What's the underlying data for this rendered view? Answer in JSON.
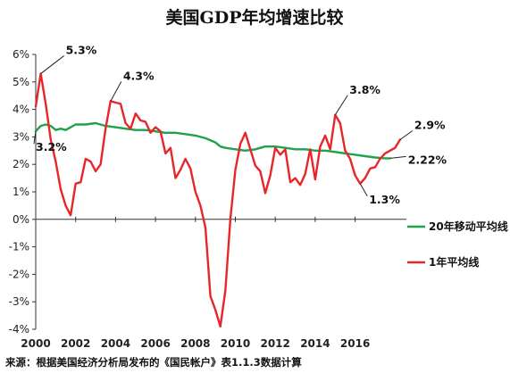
{
  "chart_data": {
    "type": "line",
    "title": "美国GDP年均增速比较",
    "source": "来源：根据美国经济分析局发布的《国民帐户》表1.1.3数据计算",
    "ylim": [
      -4,
      6
    ],
    "xlim": [
      2000,
      2018
    ],
    "y_ticks": [
      "6%",
      "5%",
      "4%",
      "3%",
      "2%",
      "1%",
      "0%",
      "-1%",
      "-2%",
      "-3%",
      "-4%"
    ],
    "x_ticks": [
      "2000",
      "2002",
      "2004",
      "2006",
      "2008",
      "2010",
      "2012",
      "2014",
      "2016"
    ],
    "series": [
      {
        "name": "20年移动平均线",
        "color": "#1fa34a",
        "points": [
          [
            2000.0,
            3.2
          ],
          [
            2000.25,
            3.4
          ],
          [
            2000.5,
            3.45
          ],
          [
            2000.75,
            3.4
          ],
          [
            2001.0,
            3.25
          ],
          [
            2001.25,
            3.3
          ],
          [
            2001.5,
            3.25
          ],
          [
            2001.75,
            3.35
          ],
          [
            2002.0,
            3.45
          ],
          [
            2002.5,
            3.45
          ],
          [
            2003.0,
            3.5
          ],
          [
            2003.5,
            3.4
          ],
          [
            2004.0,
            3.35
          ],
          [
            2004.5,
            3.3
          ],
          [
            2005.0,
            3.25
          ],
          [
            2005.5,
            3.25
          ],
          [
            2006.0,
            3.2
          ],
          [
            2006.5,
            3.15
          ],
          [
            2007.0,
            3.15
          ],
          [
            2007.5,
            3.1
          ],
          [
            2008.0,
            3.05
          ],
          [
            2008.5,
            2.95
          ],
          [
            2009.0,
            2.8
          ],
          [
            2009.25,
            2.65
          ],
          [
            2009.5,
            2.6
          ],
          [
            2010.0,
            2.55
          ],
          [
            2010.5,
            2.5
          ],
          [
            2011.0,
            2.55
          ],
          [
            2011.5,
            2.65
          ],
          [
            2012.0,
            2.65
          ],
          [
            2012.5,
            2.6
          ],
          [
            2013.0,
            2.55
          ],
          [
            2013.5,
            2.55
          ],
          [
            2014.0,
            2.5
          ],
          [
            2014.5,
            2.5
          ],
          [
            2015.0,
            2.45
          ],
          [
            2015.5,
            2.4
          ],
          [
            2016.0,
            2.35
          ],
          [
            2016.5,
            2.3
          ],
          [
            2017.0,
            2.25
          ],
          [
            2017.5,
            2.22
          ],
          [
            2017.75,
            2.22
          ]
        ]
      },
      {
        "name": "1年平均线",
        "color": "#e8262a",
        "points": [
          [
            2000.0,
            4.1
          ],
          [
            2000.25,
            5.3
          ],
          [
            2000.5,
            4.2
          ],
          [
            2000.75,
            2.9
          ],
          [
            2001.0,
            2.1
          ],
          [
            2001.25,
            1.1
          ],
          [
            2001.5,
            0.5
          ],
          [
            2001.75,
            0.15
          ],
          [
            2002.0,
            1.3
          ],
          [
            2002.25,
            1.35
          ],
          [
            2002.5,
            2.2
          ],
          [
            2002.75,
            2.1
          ],
          [
            2003.0,
            1.75
          ],
          [
            2003.25,
            2.0
          ],
          [
            2003.5,
            3.3
          ],
          [
            2003.75,
            4.3
          ],
          [
            2004.0,
            4.25
          ],
          [
            2004.25,
            4.2
          ],
          [
            2004.5,
            3.5
          ],
          [
            2004.75,
            3.3
          ],
          [
            2005.0,
            3.85
          ],
          [
            2005.25,
            3.6
          ],
          [
            2005.5,
            3.55
          ],
          [
            2005.75,
            3.15
          ],
          [
            2006.0,
            3.35
          ],
          [
            2006.25,
            3.2
          ],
          [
            2006.5,
            2.4
          ],
          [
            2006.75,
            2.6
          ],
          [
            2007.0,
            1.5
          ],
          [
            2007.25,
            1.8
          ],
          [
            2007.5,
            2.2
          ],
          [
            2007.75,
            1.85
          ],
          [
            2008.0,
            1.0
          ],
          [
            2008.25,
            0.5
          ],
          [
            2008.5,
            -0.3
          ],
          [
            2008.75,
            -2.8
          ],
          [
            2009.0,
            -3.3
          ],
          [
            2009.25,
            -3.9
          ],
          [
            2009.5,
            -2.6
          ],
          [
            2009.75,
            0.0
          ],
          [
            2010.0,
            1.8
          ],
          [
            2010.25,
            2.75
          ],
          [
            2010.5,
            3.15
          ],
          [
            2010.75,
            2.55
          ],
          [
            2011.0,
            1.95
          ],
          [
            2011.25,
            1.75
          ],
          [
            2011.5,
            0.95
          ],
          [
            2011.75,
            1.6
          ],
          [
            2012.0,
            2.6
          ],
          [
            2012.25,
            2.35
          ],
          [
            2012.5,
            2.55
          ],
          [
            2012.75,
            1.35
          ],
          [
            2013.0,
            1.5
          ],
          [
            2013.25,
            1.25
          ],
          [
            2013.5,
            1.65
          ],
          [
            2013.75,
            2.55
          ],
          [
            2014.0,
            1.45
          ],
          [
            2014.25,
            2.65
          ],
          [
            2014.5,
            3.05
          ],
          [
            2014.75,
            2.55
          ],
          [
            2015.0,
            3.8
          ],
          [
            2015.25,
            3.5
          ],
          [
            2015.5,
            2.5
          ],
          [
            2015.75,
            2.2
          ],
          [
            2016.0,
            1.6
          ],
          [
            2016.25,
            1.3
          ],
          [
            2016.5,
            1.5
          ],
          [
            2016.75,
            1.85
          ],
          [
            2017.0,
            1.9
          ],
          [
            2017.25,
            2.2
          ],
          [
            2017.5,
            2.4
          ],
          [
            2017.75,
            2.5
          ],
          [
            2018.0,
            2.6
          ],
          [
            2018.25,
            2.9
          ]
        ]
      }
    ],
    "annotations": [
      {
        "label": "5.3%",
        "x": 2000.25,
        "y": 5.3
      },
      {
        "label": "4.3%",
        "x": 2003.75,
        "y": 4.3
      },
      {
        "label": "3.2%",
        "x": 2000.0,
        "y": 3.2
      },
      {
        "label": "3.8%",
        "x": 2015.0,
        "y": 3.8
      },
      {
        "label": "2.9%",
        "x": 2018.25,
        "y": 2.9
      },
      {
        "label": "2.22%",
        "x": 2017.75,
        "y": 2.22
      },
      {
        "label": "1.3%",
        "x": 2016.25,
        "y": 1.3
      }
    ],
    "grid": false,
    "legend_position": "right"
  }
}
